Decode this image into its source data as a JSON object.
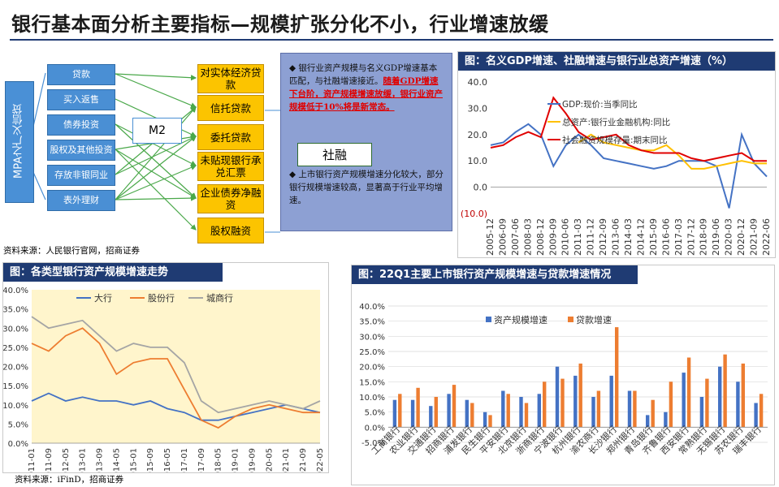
{
  "title": "银行基本面分析主要指标—规模扩张分化不小，行业增速放缓",
  "diagram": {
    "mpa": "MPA之广义信贷",
    "sources": [
      "贷款",
      "买入返售",
      "债券投资",
      "股权及其他投资",
      "存放非银同业",
      "表外理财"
    ],
    "m2": "M2",
    "destinations": [
      "对实体经济贷款",
      "信托贷款",
      "委托贷款",
      "未贴现银行承兑汇票",
      "企业债券净融资",
      "股权融资"
    ],
    "shehui": "社融",
    "bullet1_a": "银行业资产规模与名义GDP增速基本匹配，与社融增速接近。",
    "bullet1_b": "随着GDP增速下台阶，资产规模增速放缓，银行业资产规模低于10%将是新常态。",
    "bullet2": "上市银行资产规模增速分化较大，部分银行规模增速较高，显著高于行业平均增速。",
    "source1": "资料来源：人民银行官网，招商证券",
    "source2": "资料来源：iFinD，招商证券"
  },
  "colors": {
    "blue": "#4472c4",
    "orange": "#ed7d31",
    "gray": "#a5a5a5",
    "red": "#e00000",
    "yellow": "#ffc000",
    "header": "#1f3b73"
  },
  "chart_data": [
    {
      "type": "line",
      "title": "图：名义GDP增速、社融增速与银行业总资产增速（%）",
      "ylim": [
        -10,
        40
      ],
      "ytick_labels": [
        "(10.0)",
        "0.0",
        "10.0",
        "20.0",
        "30.0",
        "40.0"
      ],
      "x_labels": [
        "2005-12",
        "2006-09",
        "2007-06",
        "2008-03",
        "2008-12",
        "2009-09",
        "2010-06",
        "2011-03",
        "2011-12",
        "2012-09",
        "2013-06",
        "2014-03",
        "2014-12",
        "2015-09",
        "2016-06",
        "2017-03",
        "2017-12",
        "2018-09",
        "2019-06",
        "2020-03",
        "2020-12",
        "2021-09",
        "2022-06"
      ],
      "series": [
        {
          "name": "GDP:现价:当季同比",
          "values": [
            16,
            17,
            21,
            24,
            20,
            8,
            16,
            20,
            16,
            11,
            10,
            9,
            8,
            7,
            8,
            10,
            10,
            10,
            8,
            -8,
            20,
            9,
            4
          ]
        },
        {
          "name": "总资产:银行业金融机构:同比",
          "values": [
            null,
            null,
            null,
            null,
            null,
            null,
            null,
            17,
            20,
            17,
            16,
            15,
            14,
            14,
            16,
            12,
            7,
            7,
            8,
            9,
            10,
            9,
            9
          ]
        },
        {
          "name": "社会融资规模存量:期末同比",
          "values": [
            15,
            16,
            19,
            21,
            19,
            34,
            28,
            21,
            18,
            19,
            20,
            16,
            14,
            13,
            13,
            13,
            11,
            10,
            11,
            12,
            13,
            10,
            10
          ]
        }
      ]
    },
    {
      "type": "line",
      "title": "图：各类型银行资产规模增速走势",
      "ylim": [
        0,
        40
      ],
      "ytick_labels": [
        "0.0%",
        "5.0%",
        "10.0%",
        "15.0%",
        "20.0%",
        "25.0%",
        "30.0%",
        "35.0%",
        "40.0%"
      ],
      "x_labels": [
        "2011-01",
        "2011-09",
        "2012-05",
        "2013-01",
        "2013-09",
        "2014-05",
        "2015-01",
        "2015-09",
        "2016-05",
        "2017-01",
        "2017-09",
        "2018-05",
        "2019-01",
        "2019-09",
        "2020-05",
        "2021-01",
        "2021-09",
        "2022-05"
      ],
      "series": [
        {
          "name": "大行",
          "values": [
            11,
            13,
            11,
            12,
            11,
            11,
            10,
            11,
            9,
            8,
            6,
            6,
            7,
            8,
            9,
            10,
            9,
            8
          ]
        },
        {
          "name": "股份行",
          "values": [
            26,
            24,
            28,
            30,
            26,
            18,
            21,
            22,
            22,
            14,
            6,
            4,
            7,
            9,
            10,
            9,
            8,
            8
          ]
        },
        {
          "name": "城商行",
          "values": [
            33,
            30,
            31,
            32,
            28,
            24,
            26,
            25,
            25,
            21,
            11,
            8,
            9,
            10,
            11,
            10,
            9,
            11
          ]
        }
      ]
    },
    {
      "type": "bar",
      "title": "图：22Q1主要上市银行资产规模增速与贷款增速情况",
      "ylim": [
        -5,
        40
      ],
      "ytick_labels": [
        "-5.0%",
        "0.0%",
        "5.0%",
        "10.0%",
        "15.0%",
        "20.0%",
        "25.0%",
        "30.0%",
        "35.0%",
        "40.0%"
      ],
      "categories": [
        "工商银行",
        "农业银行",
        "交通银行",
        "招商银行",
        "浦发银行",
        "民生银行",
        "平安银行",
        "北京银行",
        "浙商银行",
        "宁波银行",
        "杭州银行",
        "渝农商行",
        "长沙银行",
        "郑州银行",
        "青岛银行",
        "齐鲁银行",
        "西安银行",
        "常熟银行",
        "无锡银行",
        "苏农银行",
        "瑞丰银行"
      ],
      "series": [
        {
          "name": "资产规模增速",
          "values": [
            9,
            9,
            7,
            11,
            9,
            5,
            12,
            10,
            11,
            20,
            17,
            10,
            17,
            12,
            4,
            5,
            18,
            10,
            20,
            15,
            8
          ]
        },
        {
          "name": "贷款增速",
          "values": [
            11,
            13,
            10,
            14,
            8,
            4,
            11,
            8,
            15,
            16,
            21,
            12,
            33,
            12,
            9,
            15,
            23,
            16,
            24,
            21,
            11
          ]
        }
      ]
    }
  ]
}
